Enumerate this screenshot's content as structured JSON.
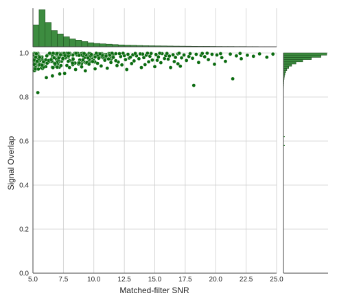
{
  "chart_data": {
    "type": "scatter",
    "xlabel": "Matched-filter SNR",
    "ylabel": "Signal Overlap",
    "xlim": [
      5.0,
      25.0
    ],
    "ylim": [
      0.0,
      1.0
    ],
    "x_ticks": [
      "5.0",
      "7.5",
      "10.0",
      "12.5",
      "15.0",
      "17.5",
      "20.0",
      "22.5",
      "25.0"
    ],
    "y_ticks": [
      "0.0",
      "0.2",
      "0.4",
      "0.6",
      "0.8",
      "1.0"
    ],
    "grid": true,
    "colors": {
      "points": "#0b6b10",
      "bars": "#3d8c40",
      "bar_edge": "#1f4f1f",
      "grid": "#cccccc",
      "axis": "#444444"
    },
    "marginal_x": {
      "bin_edges": [
        5.0,
        5.5,
        6.0,
        6.5,
        7.0,
        7.5,
        8.0,
        8.5,
        9.0,
        9.5,
        10.0,
        10.5,
        11.0,
        11.5,
        12.0,
        12.5,
        13.0,
        13.5,
        14.0,
        14.5,
        15.0,
        15.5,
        16.0,
        16.5,
        17.0,
        17.5,
        18.0,
        18.5,
        19.0,
        19.5,
        20.0,
        20.5,
        21.0,
        21.5,
        22.0,
        22.5,
        23.0,
        23.5,
        24.0,
        24.5
      ],
      "counts": [
        460,
        780,
        510,
        340,
        270,
        210,
        165,
        140,
        110,
        85,
        70,
        62,
        55,
        47,
        40,
        35,
        32,
        28,
        24,
        22,
        20,
        18,
        16,
        14,
        13,
        12,
        10,
        9,
        9,
        8,
        7,
        6,
        6,
        5,
        5,
        4,
        4,
        3,
        3
      ]
    },
    "marginal_y": {
      "bin_edges": [
        0.8,
        0.81,
        0.82,
        0.83,
        0.84,
        0.85,
        0.86,
        0.87,
        0.88,
        0.89,
        0.9,
        0.91,
        0.92,
        0.93,
        0.94,
        0.95,
        0.96,
        0.97,
        0.98,
        0.99,
        1.0
      ],
      "counts": [
        1,
        2,
        3,
        3,
        4,
        6,
        8,
        10,
        14,
        20,
        30,
        45,
        70,
        110,
        170,
        260,
        400,
        580,
        780,
        900
      ]
    },
    "marginal_y_outliers": [
      0.62,
      0.58
    ],
    "points": [
      [
        5.4,
        0.82
      ],
      [
        18.2,
        0.853
      ],
      [
        21.4,
        0.883
      ],
      [
        6.1,
        0.888
      ],
      [
        6.6,
        0.896
      ],
      [
        7.2,
        0.905
      ],
      [
        7.6,
        0.907
      ],
      [
        9.3,
        0.919
      ],
      [
        8.5,
        0.925
      ],
      [
        12.7,
        0.925
      ],
      [
        10.1,
        0.928
      ],
      [
        11.1,
        0.931
      ],
      [
        8.0,
        0.934
      ],
      [
        13.9,
        0.934
      ],
      [
        16.3,
        0.934
      ],
      [
        9.0,
        0.937
      ],
      [
        15.0,
        0.938
      ],
      [
        17.1,
        0.94
      ],
      [
        10.6,
        0.941
      ],
      [
        11.9,
        0.943
      ],
      [
        7.3,
        0.943
      ],
      [
        12.3,
        0.946
      ],
      [
        14.2,
        0.947
      ],
      [
        9.6,
        0.949
      ],
      [
        19.9,
        0.949
      ],
      [
        16.9,
        0.951
      ],
      [
        13.1,
        0.952
      ],
      [
        10.3,
        0.953
      ],
      [
        8.8,
        0.955
      ],
      [
        15.5,
        0.956
      ],
      [
        11.4,
        0.957
      ],
      [
        18.6,
        0.957
      ],
      [
        12.0,
        0.959
      ],
      [
        14.5,
        0.96
      ],
      [
        9.9,
        0.961
      ],
      [
        16.6,
        0.961
      ],
      [
        20.8,
        0.962
      ],
      [
        7.9,
        0.962
      ],
      [
        13.3,
        0.964
      ],
      [
        11.8,
        0.965
      ],
      [
        17.6,
        0.966
      ],
      [
        15.2,
        0.967
      ],
      [
        10.9,
        0.967
      ],
      [
        14.8,
        0.968
      ],
      [
        9.1,
        0.969
      ],
      [
        12.6,
        0.97
      ],
      [
        19.4,
        0.97
      ],
      [
        16.1,
        0.972
      ],
      [
        8.3,
        0.972
      ],
      [
        11.2,
        0.973
      ],
      [
        13.7,
        0.974
      ],
      [
        22.1,
        0.974
      ],
      [
        15.8,
        0.975
      ],
      [
        10.4,
        0.976
      ],
      [
        18.1,
        0.976
      ],
      [
        12.9,
        0.977
      ],
      [
        17.2,
        0.978
      ],
      [
        9.5,
        0.978
      ],
      [
        14.1,
        0.979
      ],
      [
        20.5,
        0.979
      ],
      [
        11.6,
        0.98
      ],
      [
        16.7,
        0.98
      ],
      [
        13.0,
        0.981
      ],
      [
        24.2,
        0.981
      ],
      [
        15.3,
        0.982
      ],
      [
        10.1,
        0.982
      ],
      [
        19.1,
        0.983
      ],
      [
        12.2,
        0.984
      ],
      [
        17.8,
        0.984
      ],
      [
        14.6,
        0.985
      ],
      [
        23.1,
        0.985
      ],
      [
        11.0,
        0.986
      ],
      [
        16.2,
        0.986
      ],
      [
        13.5,
        0.987
      ],
      [
        21.7,
        0.987
      ],
      [
        15.9,
        0.988
      ],
      [
        12.5,
        0.988
      ],
      [
        18.8,
        0.989
      ],
      [
        10.7,
        0.989
      ],
      [
        14.3,
        0.99
      ],
      [
        22.6,
        0.99
      ],
      [
        17.4,
        0.991
      ],
      [
        11.3,
        0.991
      ],
      [
        20.1,
        0.991
      ],
      [
        13.2,
        0.992
      ],
      [
        16.5,
        0.992
      ],
      [
        9.8,
        0.993
      ],
      [
        15.1,
        0.993
      ],
      [
        19.7,
        0.994
      ],
      [
        12.8,
        0.994
      ],
      [
        18.4,
        0.994
      ],
      [
        24.7,
        0.995
      ],
      [
        14.0,
        0.995
      ],
      [
        21.2,
        0.995
      ],
      [
        10.5,
        0.996
      ],
      [
        16.9,
        0.996
      ],
      [
        13.8,
        0.996
      ],
      [
        23.6,
        0.996
      ],
      [
        15.6,
        0.997
      ],
      [
        11.8,
        0.997
      ],
      [
        20.4,
        0.997
      ],
      [
        17.9,
        0.997
      ],
      [
        12.1,
        0.997
      ],
      [
        22.0,
        0.998
      ],
      [
        14.7,
        0.998
      ],
      [
        9.2,
        0.998
      ],
      [
        16.0,
        0.998
      ],
      [
        18.9,
        0.998
      ],
      [
        13.4,
        0.998
      ],
      [
        10.2,
        0.999
      ],
      [
        15.4,
        0.999
      ],
      [
        11.5,
        0.999
      ],
      [
        19.3,
        0.999
      ],
      [
        12.4,
        0.999
      ],
      [
        17.0,
        0.999
      ],
      [
        14.4,
        0.999
      ]
    ]
  }
}
